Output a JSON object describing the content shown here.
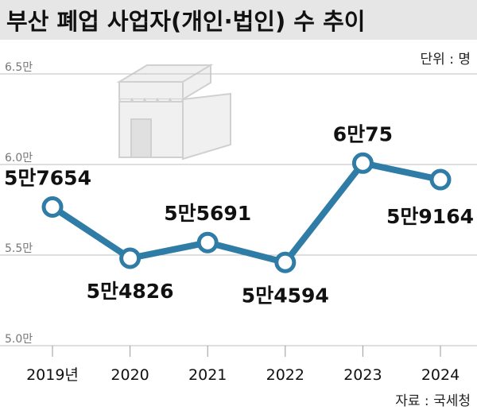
{
  "chart_data": {
    "type": "line",
    "title": "부산 폐업 사업자(개인·법인) 수 추이",
    "unit_label": "단위 : 명",
    "source": "자료 : 국세청",
    "categories": [
      "2019년",
      "2020",
      "2021",
      "2022",
      "2023",
      "2024"
    ],
    "series": [
      {
        "values": [
          57654,
          54826,
          55691,
          54594,
          60075,
          59164
        ]
      }
    ],
    "data_labels": [
      "5만7654",
      "5만4826",
      "5만5691",
      "5만4594",
      "6만75",
      "5만9164"
    ],
    "yticks": [
      50000,
      55000,
      60000,
      65000
    ],
    "ytick_labels": [
      "5.0만",
      "5.5만",
      "6.0만",
      "6.5만"
    ],
    "ylim": [
      50000,
      65000
    ],
    "grid": true,
    "colors": {
      "line": "#2f7ca6",
      "marker_fill": "#ffffff",
      "grid": "#bfbfbf",
      "header_bg": "#e6e6e6"
    }
  }
}
